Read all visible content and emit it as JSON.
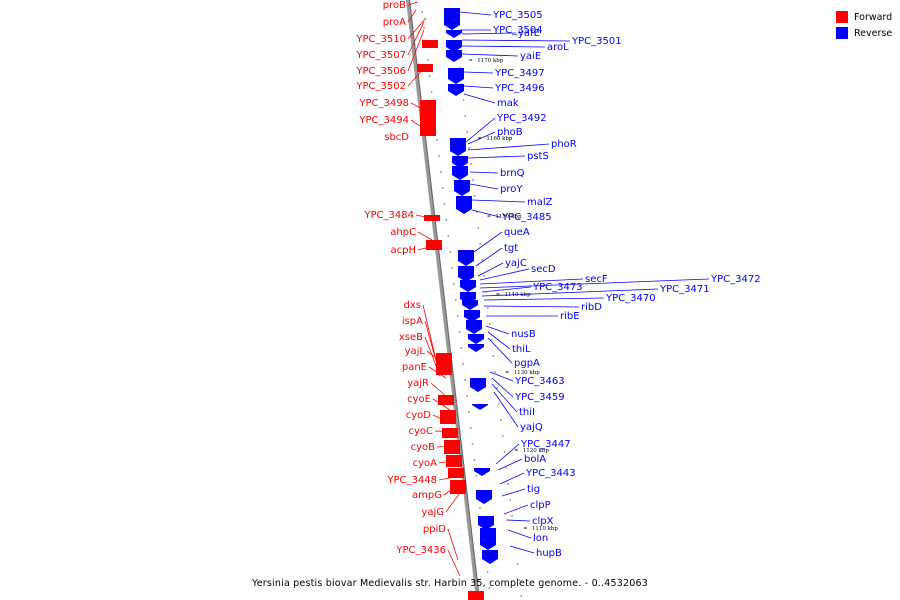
{
  "caption": "Yersinia pestis biovar Medievalis str. Harbin 35, complete genome. - 0..4532063",
  "legend": [
    {
      "label": "Forward",
      "color": "#ff0000"
    },
    {
      "label": "Reverse",
      "color": "#0000ff"
    }
  ],
  "colors": {
    "forward": "#ff0000",
    "reverse": "#0000ff",
    "backbone": "#999999"
  },
  "scale_ticks": [
    "1170 kbp",
    "1160 kbp",
    "1150 kbp",
    "1140 kbp",
    "1130 kbp",
    "1120 kbp",
    "1110 kbp"
  ],
  "forward_genes": [
    "proB",
    "proA",
    "YPC_3510",
    "YPC_3507",
    "YPC_3506",
    "YPC_3502",
    "YPC_3498",
    "YPC_3494",
    "sbcD",
    "YPC_3484",
    "ahpC",
    "acpH",
    "dxs",
    "ispA",
    "xseB",
    "yajL",
    "panE",
    "yajR",
    "cyoE",
    "cyoD",
    "cyoC",
    "cyoB",
    "cyoA",
    "YPC_3448",
    "ampG",
    "yajG",
    "ppiD",
    "YPC_3436"
  ],
  "reverse_genes": [
    "YPC_3505",
    "YPC_3504",
    "yafE",
    "YPC_3501",
    "aroL",
    "yaiE",
    "YPC_3497",
    "YPC_3496",
    "mak",
    "YPC_3492",
    "phoB",
    "phoR",
    "pstS",
    "brnQ",
    "proY",
    "malZ",
    "YPC_3485",
    "queA",
    "tgt",
    "yajC",
    "secD",
    "secF",
    "YPC_3472",
    "YPC_3473",
    "YPC_3471",
    "YPC_3470",
    "ribD",
    "ribE",
    "nusB",
    "thiL",
    "pgpA",
    "YPC_3463",
    "YPC_3459",
    "thiI",
    "yajQ",
    "YPC_3447",
    "bolA",
    "YPC_3443",
    "tig",
    "clpP",
    "clpX",
    "lon",
    "hupB"
  ]
}
